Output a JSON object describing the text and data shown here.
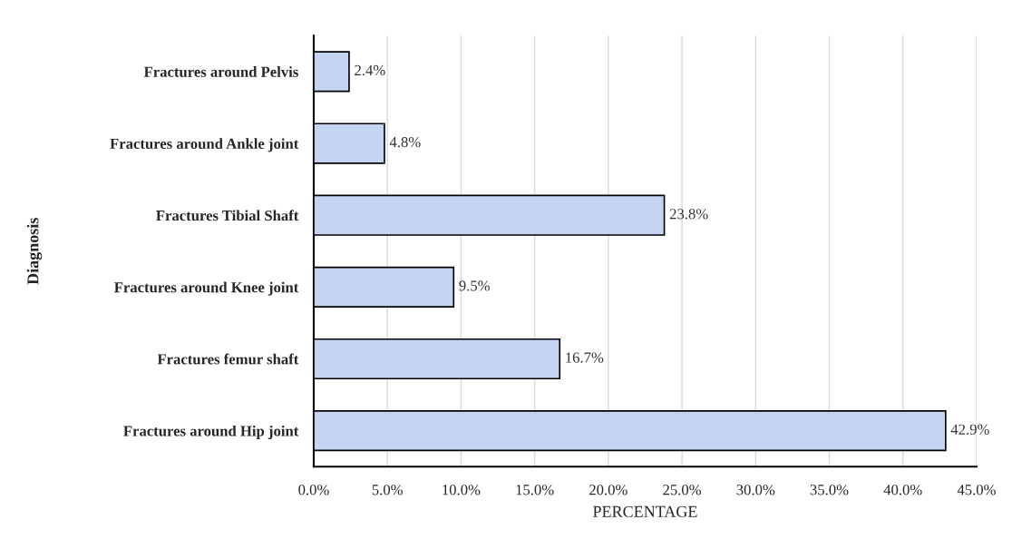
{
  "chart_data": {
    "type": "bar",
    "orientation": "horizontal",
    "xlabel": "PERCENTAGE",
    "ylabel": "Diagnosis",
    "categories": [
      "Fractures around Pelvis",
      "Fractures around Ankle joint",
      "Fractures Tibial Shaft",
      "Fractures around Knee joint",
      "Fractures femur shaft",
      "Fractures around Hip joint"
    ],
    "values": [
      2.4,
      4.8,
      23.8,
      9.5,
      16.7,
      42.9
    ],
    "value_labels": [
      "2.4%",
      "4.8%",
      "23.8%",
      "9.5%",
      "16.7%",
      "42.9%"
    ],
    "color": "#c6d4f4",
    "xlim": [
      0,
      45
    ],
    "xticks": [
      {
        "value": 0,
        "label": "0.0%"
      },
      {
        "value": 5,
        "label": "5.0%"
      },
      {
        "value": 10,
        "label": "10.0%"
      },
      {
        "value": 15,
        "label": "15.0%"
      },
      {
        "value": 20,
        "label": "20.0%"
      },
      {
        "value": 25,
        "label": "25.0%"
      },
      {
        "value": 30,
        "label": "30.0%"
      },
      {
        "value": 35,
        "label": "35.0%"
      },
      {
        "value": 40,
        "label": "40.0%"
      },
      {
        "value": 45,
        "label": "45.0%"
      }
    ],
    "grid": "x"
  }
}
